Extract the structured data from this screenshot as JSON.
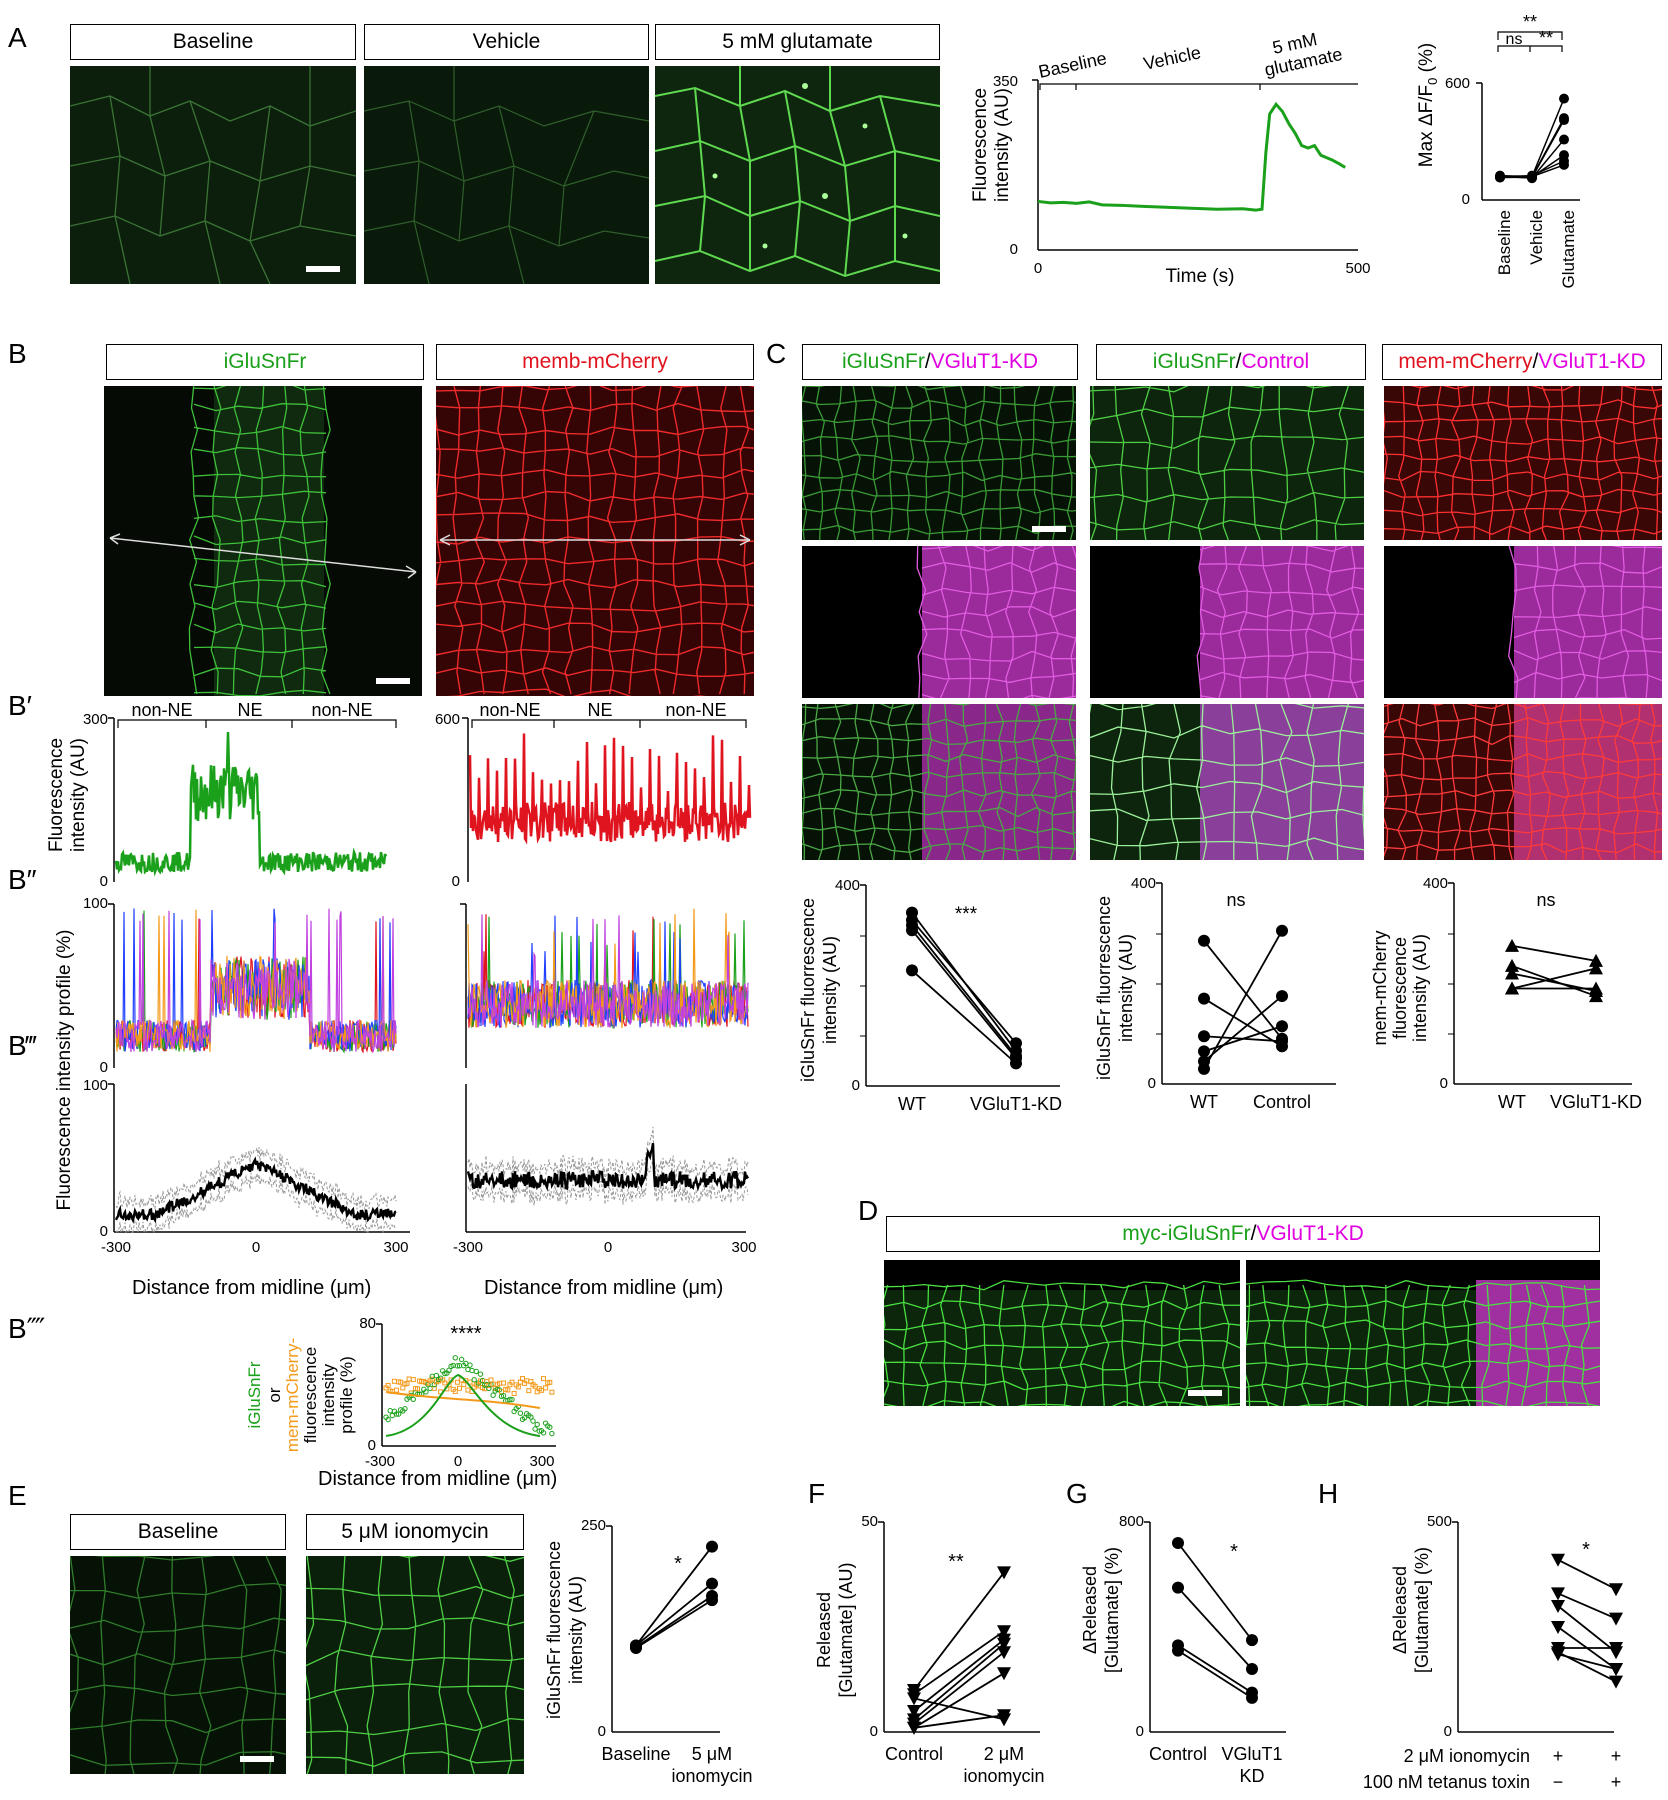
{
  "panels": {
    "A": "A",
    "B": "B",
    "Bp": "B′",
    "Bpp": "B″",
    "Bppp": "B‴",
    "Bpppp": "B⁗",
    "C": "C",
    "D": "D",
    "E": "E",
    "F": "F",
    "G": "G",
    "H": "H"
  },
  "colors": {
    "green": "#1aa01a",
    "red": "#e0141e",
    "magenta": "#e000e0",
    "orange": "#f39a1a",
    "blue": "#1f3fff"
  },
  "A": {
    "headers": [
      "Baseline",
      "Vehicle",
      "5 mM glutamate"
    ],
    "trace": {
      "ylabel1": "Fluorescence",
      "ylabel2": "intensity (AU)",
      "xlabel": "Time (s)",
      "ymax": "350",
      "ymin": "0",
      "xmin": "0",
      "xmax": "500",
      "phases": [
        "Baseline",
        "Vehicle",
        "5 mM",
        "glutamate"
      ],
      "chart_data": {
        "type": "line",
        "x": [
          0,
          20,
          40,
          60,
          80,
          100,
          130,
          160,
          200,
          240,
          280,
          320,
          340,
          350,
          356,
          362,
          372,
          382,
          392,
          402,
          412,
          422,
          432,
          442,
          460,
          470,
          480
        ],
        "y": [
          100,
          97,
          98,
          96,
          99,
          93,
          92,
          90,
          88,
          86,
          84,
          85,
          82,
          84,
          200,
          280,
          300,
          285,
          260,
          240,
          215,
          210,
          215,
          195,
          185,
          178,
          170
        ],
        "xlim": [
          0,
          500
        ],
        "ylim": [
          0,
          350
        ]
      }
    },
    "max": {
      "ylabel": "Max ΔF/F",
      "ylabel_sub": "0",
      "ylabel_unit": "(%)",
      "yticks": [
        "600",
        "0"
      ],
      "categories": [
        "Baseline",
        "Vehicle",
        "Glutamate"
      ],
      "sig": [
        "**",
        "ns",
        "**"
      ],
      "chart_data": {
        "type": "scatter",
        "categories": [
          "Baseline",
          "Vehicle",
          "Glutamate"
        ],
        "ylim": [
          0,
          600
        ],
        "series": [
          [
            125,
            120,
            520
          ],
          [
            120,
            118,
            420
          ],
          [
            118,
            115,
            410
          ],
          [
            122,
            112,
            310
          ],
          [
            115,
            118,
            230
          ],
          [
            120,
            125,
            200
          ],
          [
            118,
            120,
            180
          ]
        ]
      }
    }
  },
  "B": {
    "headers": [
      "iGluSnFr",
      "memb-mCherry"
    ],
    "regions_left": [
      "non-NE",
      "NE",
      "non-NE"
    ],
    "regions_right": [
      "non-NE",
      "NE",
      "non-NE"
    ],
    "Bp_ylabel1": "Fluorescence",
    "Bp_ylabel2": "intensity (AU)",
    "Bp_ymax_left": "300",
    "Bp_ymax_right": "600",
    "zero": "0",
    "Bpp_ylabel": "Fluorescence intensity profile (%)",
    "hundred": "100",
    "xticks_left": [
      "-300",
      "0",
      "300"
    ],
    "xticks_right": [
      "-300",
      "0",
      "300"
    ],
    "xlabel": "Distance from midline (μm)",
    "Bpppp": {
      "ylabel": [
        "iGluSnFr",
        "or",
        "mem-mCherry-",
        "fluorescence",
        "intensity",
        "profile (%)"
      ],
      "ymax": "80",
      "ymin": "0",
      "xticks": [
        "-300",
        "0",
        "300"
      ],
      "xlabel": "Distance from midline (μm)",
      "sig": "****"
    }
  },
  "C": {
    "headers": [
      {
        "a": "iGluSnFr",
        "sep": " / ",
        "b": "VGluT1-KD"
      },
      {
        "a": "iGluSnFr",
        "sep": " / ",
        "b": "Control"
      },
      {
        "a": "mem-mCherry",
        "sep": " / ",
        "b": "VGluT1-KD"
      }
    ],
    "plots": [
      {
        "ylabel": [
          "iGluSnFr fluorrescence",
          "intensity (AU)"
        ],
        "ymax": "400",
        "ymin": "0",
        "categories": [
          "WT",
          "VGluT1-KD"
        ],
        "sig": "***",
        "chart_data": {
          "type": "scatter",
          "categories": [
            "WT",
            "VGluT1-KD"
          ],
          "ylim": [
            0,
            400
          ],
          "series": [
            [
              345,
              70
            ],
            [
              330,
              85
            ],
            [
              320,
              60
            ],
            [
              310,
              55
            ],
            [
              230,
              45
            ]
          ]
        }
      },
      {
        "ylabel": [
          "iGluSnFr fluorrescence",
          "intensity (AU)"
        ],
        "ymax": "400",
        "ymin": "0",
        "categories": [
          "WT",
          "Control"
        ],
        "sig": "ns",
        "chart_data": {
          "type": "scatter",
          "categories": [
            "WT",
            "Control"
          ],
          "ylim": [
            0,
            400
          ],
          "series": [
            [
              285,
              90
            ],
            [
              170,
              75
            ],
            [
              95,
              85
            ],
            [
              65,
              115
            ],
            [
              45,
              175
            ],
            [
              30,
              305
            ]
          ]
        }
      },
      {
        "ylabel": [
          "mem-mCherry",
          "fluorescence",
          "intensity (AU)"
        ],
        "ymax": "400",
        "ymin": "0",
        "categories": [
          "WT",
          "VGluT1-KD"
        ],
        "sig": "ns",
        "chart_data": {
          "type": "scatter",
          "categories": [
            "WT",
            "VGluT1-KD"
          ],
          "ylim": [
            0,
            400
          ],
          "series": [
            [
              275,
              245
            ],
            [
              235,
              175
            ],
            [
              220,
              185
            ],
            [
              190,
              230
            ],
            [
              190,
              190
            ]
          ]
        }
      }
    ]
  },
  "D": {
    "header": {
      "a": "myc-iGluSnFr",
      "sep": " / ",
      "b": "VGluT1-KD"
    }
  },
  "E": {
    "headers": [
      "Baseline",
      "5 μM ionomycin"
    ],
    "plot": {
      "ylabel": [
        "iGluSnFr fluorescence",
        "intensity (AU)"
      ],
      "ymax": "250",
      "ymin": "0",
      "categories": [
        "Baseline",
        "5 μM",
        "ionomycin"
      ],
      "sig": "*",
      "chart_data": {
        "type": "scatter",
        "categories": [
          "Baseline",
          "5 μM ionomycin"
        ],
        "ylim": [
          0,
          250
        ],
        "series": [
          [
            105,
            225
          ],
          [
            105,
            180
          ],
          [
            103,
            165
          ],
          [
            102,
            160
          ]
        ]
      }
    }
  },
  "F": {
    "ylabel": [
      "Released",
      "[Glutamate] (AU)"
    ],
    "ymax": "50",
    "ymin": "0",
    "categories": [
      "Control",
      "2 μM",
      "ionomycin"
    ],
    "sig": "**",
    "chart_data": {
      "type": "scatter",
      "categories": [
        "Control",
        "2 μM ionomycin"
      ],
      "ylim": [
        0,
        50
      ],
      "series": [
        [
          10,
          38
        ],
        [
          9,
          24
        ],
        [
          5,
          22
        ],
        [
          3,
          21
        ],
        [
          2,
          19
        ],
        [
          1,
          14
        ],
        [
          8,
          3
        ],
        [
          1,
          4
        ]
      ]
    }
  },
  "G": {
    "ylabel": [
      "ΔReleased",
      "[Glutamate] (%)"
    ],
    "ymax": "800",
    "ymin": "0",
    "categories": [
      "Control",
      "VGluT1",
      "KD"
    ],
    "sig": "*",
    "chart_data": {
      "type": "scatter",
      "categories": [
        "Control",
        "VGluT1 KD"
      ],
      "ylim": [
        0,
        800
      ],
      "series": [
        [
          720,
          350
        ],
        [
          550,
          240
        ],
        [
          330,
          150
        ],
        [
          310,
          130
        ]
      ]
    }
  },
  "H": {
    "ylabel": [
      "ΔReleased",
      "[Glutamate] (%)"
    ],
    "ymax": "500",
    "ymin": "0",
    "sig": "*",
    "rows": [
      {
        "label": "2 μM ionomycin",
        "a": "+",
        "b": "+"
      },
      {
        "label": "100 nM tetanus toxin",
        "a": "−",
        "b": "+"
      }
    ],
    "chart_data": {
      "type": "scatter",
      "ylim": [
        0,
        500
      ],
      "series": [
        [
          410,
          340
        ],
        [
          330,
          270
        ],
        [
          300,
          190
        ],
        [
          250,
          150
        ],
        [
          200,
          200
        ],
        [
          190,
          120
        ],
        [
          185,
          150
        ]
      ]
    }
  }
}
